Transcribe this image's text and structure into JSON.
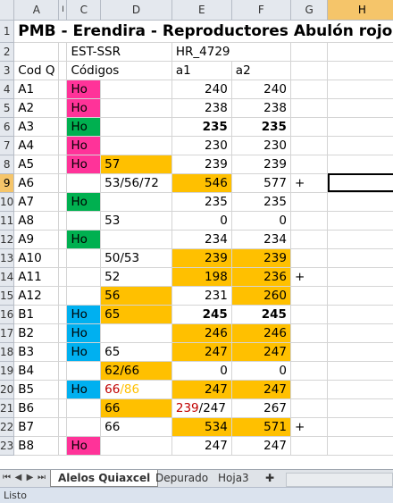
{
  "columns": [
    "A",
    "I",
    "C",
    "D",
    "E",
    "F",
    "G",
    "H"
  ],
  "title": "PMB - Erendira - Reproductores Abulón rojo",
  "row2": {
    "c": "EST-SSR",
    "e": "HR_4729"
  },
  "row3": {
    "a": "Cod Q",
    "c": "Códigos",
    "e": "a1",
    "f": "a2"
  },
  "rows": [
    {
      "n": "4",
      "a": "A1",
      "c": "Ho",
      "d": "",
      "e": "240",
      "f": "240",
      "g": ""
    },
    {
      "n": "5",
      "a": "A2",
      "c": "Ho",
      "d": "",
      "e": "238",
      "f": "238",
      "g": ""
    },
    {
      "n": "6",
      "a": "A3",
      "c": "Ho",
      "d": "",
      "e": "235",
      "f": "235",
      "g": ""
    },
    {
      "n": "7",
      "a": "A4",
      "c": "Ho",
      "d": "",
      "e": "230",
      "f": "230",
      "g": ""
    },
    {
      "n": "8",
      "a": "A5",
      "c": "Ho",
      "d": "57",
      "e": "239",
      "f": "239",
      "g": ""
    },
    {
      "n": "9",
      "a": "A6",
      "c": "",
      "d": "53/56/72",
      "e": "546",
      "f": "577",
      "g": "+"
    },
    {
      "n": "10",
      "a": "A7",
      "c": "Ho",
      "d": "",
      "e": "235",
      "f": "235",
      "g": ""
    },
    {
      "n": "11",
      "a": "A8",
      "c": "",
      "d": "53",
      "e": "0",
      "f": "0",
      "g": ""
    },
    {
      "n": "12",
      "a": "A9",
      "c": "Ho",
      "d": "",
      "e": "234",
      "f": "234",
      "g": ""
    },
    {
      "n": "13",
      "a": "A10",
      "c": "",
      "d": "50/53",
      "e": "239",
      "f": "239",
      "g": ""
    },
    {
      "n": "14",
      "a": "A11",
      "c": "",
      "d": "52",
      "e": "198",
      "f": "236",
      "g": "+"
    },
    {
      "n": "15",
      "a": "A12",
      "c": "",
      "d": "56",
      "e": "231",
      "f": "260",
      "g": ""
    },
    {
      "n": "16",
      "a": "B1",
      "c": "Ho",
      "d": "65",
      "e": "245",
      "f": "245",
      "g": ""
    },
    {
      "n": "17",
      "a": "B2",
      "c": "Ho",
      "d": "",
      "e": "246",
      "f": "246",
      "g": ""
    },
    {
      "n": "18",
      "a": "B3",
      "c": "Ho",
      "d": "65",
      "e": "247",
      "f": "247",
      "g": ""
    },
    {
      "n": "19",
      "a": "B4",
      "c": "",
      "d": "62/66",
      "e": "0",
      "f": "0",
      "g": ""
    },
    {
      "n": "20",
      "a": "B5",
      "c": "Ho",
      "d1": "66",
      "d2": "/86",
      "e": "247",
      "f": "247",
      "g": ""
    },
    {
      "n": "21",
      "a": "B6",
      "c": "",
      "d": "66",
      "e1": "239",
      "e2": "/247",
      "f": "267",
      "g": ""
    },
    {
      "n": "22",
      "a": "B7",
      "c": "",
      "d": "66",
      "e": "534",
      "f": "571",
      "g": "+"
    },
    {
      "n": "23",
      "a": "B8",
      "c": "Ho",
      "d": "",
      "e": "247",
      "f": "247",
      "g": ""
    }
  ],
  "tabs": [
    "Alelos Quiaxcel",
    "Depurado",
    "Hoja3"
  ],
  "status": "Listo",
  "colors": {
    "pink": "#ff3399",
    "green": "#00b050",
    "blue": "#00b0f0",
    "orange": "#ffc000",
    "red": "#c00000"
  }
}
